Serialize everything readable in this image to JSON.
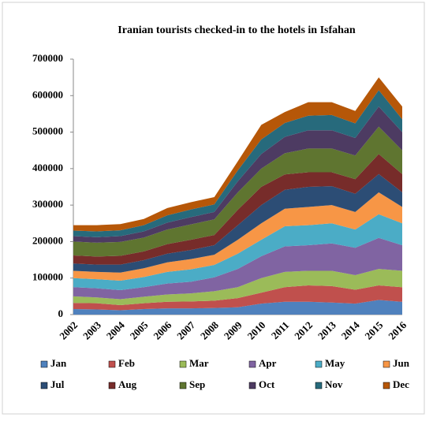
{
  "chart_data": {
    "type": "stacked_area",
    "title": "Iranian tourists checked-in to the hotels in Isfahan",
    "categories": [
      "2002",
      "2003",
      "2004",
      "2005",
      "2006",
      "2007",
      "2008",
      "2009",
      "2010",
      "2011",
      "2012",
      "2013",
      "2014",
      "2015",
      "2016"
    ],
    "ylim": [
      0,
      700000
    ],
    "yticks": [
      0,
      100000,
      200000,
      300000,
      400000,
      500000,
      600000,
      700000
    ],
    "grid": false,
    "legend": "bottom",
    "series": [
      {
        "name": "Jan",
        "color": "#4f81bd",
        "values": [
          15000,
          14000,
          12000,
          15000,
          17000,
          17000,
          18000,
          20000,
          30000,
          35000,
          35000,
          33000,
          30000,
          40000,
          35000
        ]
      },
      {
        "name": "Feb",
        "color": "#c0504d",
        "values": [
          17000,
          17000,
          14000,
          16000,
          18000,
          19000,
          20000,
          25000,
          30000,
          40000,
          45000,
          45000,
          38000,
          40000,
          40000
        ]
      },
      {
        "name": "Mar",
        "color": "#9bbb59",
        "values": [
          18000,
          16000,
          16000,
          18000,
          20000,
          22000,
          26000,
          30000,
          40000,
          42000,
          40000,
          42000,
          40000,
          45000,
          45000
        ]
      },
      {
        "name": "Apr",
        "color": "#8064a2",
        "values": [
          25000,
          25000,
          25000,
          26000,
          30000,
          32000,
          38000,
          50000,
          60000,
          70000,
          70000,
          75000,
          75000,
          85000,
          70000
        ]
      },
      {
        "name": "May",
        "color": "#4bacc6",
        "values": [
          25000,
          25000,
          26000,
          28000,
          32000,
          34000,
          34000,
          42000,
          45000,
          55000,
          55000,
          55000,
          50000,
          65000,
          60000
        ]
      },
      {
        "name": "Jun",
        "color": "#f79646",
        "values": [
          20000,
          20000,
          22000,
          24000,
          26000,
          28000,
          28000,
          38000,
          45000,
          48000,
          50000,
          50000,
          48000,
          60000,
          45000
        ]
      },
      {
        "name": "Jul",
        "color": "#2c4d75",
        "values": [
          20000,
          20000,
          22000,
          22000,
          24000,
          25000,
          26000,
          40000,
          50000,
          52000,
          55000,
          52000,
          50000,
          50000,
          40000
        ]
      },
      {
        "name": "Aug",
        "color": "#772c2a",
        "values": [
          22000,
          22000,
          24000,
          24000,
          26000,
          28000,
          28000,
          42000,
          50000,
          42000,
          40000,
          38000,
          40000,
          55000,
          50000
        ]
      },
      {
        "name": "Sep",
        "color": "#5f7530",
        "values": [
          38000,
          38000,
          38000,
          38000,
          40000,
          42000,
          43000,
          48000,
          50000,
          58000,
          65000,
          65000,
          65000,
          75000,
          65000
        ]
      },
      {
        "name": "Oct",
        "color": "#4d3b62",
        "values": [
          15000,
          15000,
          16000,
          17000,
          19000,
          20000,
          20000,
          30000,
          40000,
          45000,
          50000,
          50000,
          48000,
          55000,
          50000
        ]
      },
      {
        "name": "Nov",
        "color": "#276a7c",
        "values": [
          15000,
          16000,
          16000,
          17000,
          20000,
          21000,
          21000,
          30000,
          40000,
          38000,
          40000,
          42000,
          40000,
          45000,
          35000
        ]
      },
      {
        "name": "Dec",
        "color": "#b65708",
        "values": [
          15000,
          17000,
          17000,
          17000,
          20000,
          20000,
          20000,
          25000,
          40000,
          30000,
          37000,
          35000,
          34000,
          35000,
          35000
        ]
      }
    ]
  }
}
